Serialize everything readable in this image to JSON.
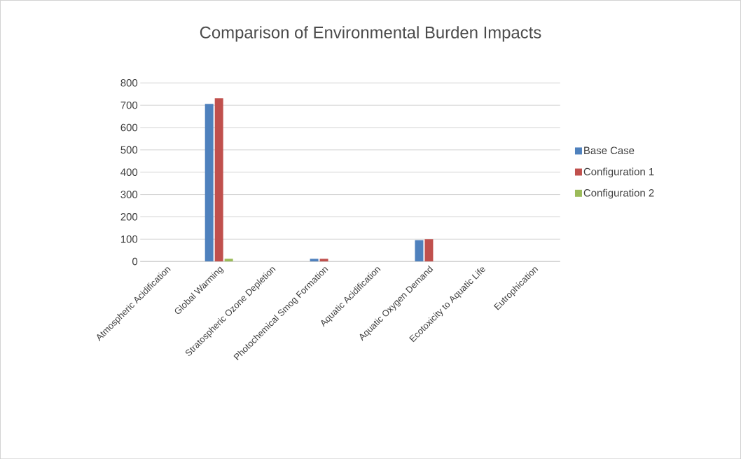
{
  "chart_data": {
    "type": "bar",
    "title": "Comparison of Environmental Burden Impacts",
    "categories": [
      "Atmospheric Acidification",
      "Global Warming",
      "Stratospheric Ozone Depletion",
      "Photochemical Smog Formation",
      "Aquatic Acidification",
      "Aquatic Oxygen Demand",
      "Ecotoxicity to Aquatic Life",
      "Eutrophication"
    ],
    "series": [
      {
        "name": "Base Case",
        "color": "#4f81bd",
        "values": [
          0,
          706,
          0,
          12,
          0,
          95,
          0,
          0
        ]
      },
      {
        "name": "Configuration 1",
        "color": "#c0504d",
        "values": [
          0,
          731,
          0,
          12,
          0,
          100,
          0,
          0
        ]
      },
      {
        "name": "Configuration 2",
        "color": "#9bbb59",
        "values": [
          0,
          12,
          0,
          0,
          0,
          0,
          0,
          0
        ]
      }
    ],
    "ylim": [
      0,
      800
    ],
    "yticks": [
      0,
      100,
      200,
      300,
      400,
      500,
      600,
      700,
      800
    ],
    "grid": "y",
    "legend": "right"
  }
}
